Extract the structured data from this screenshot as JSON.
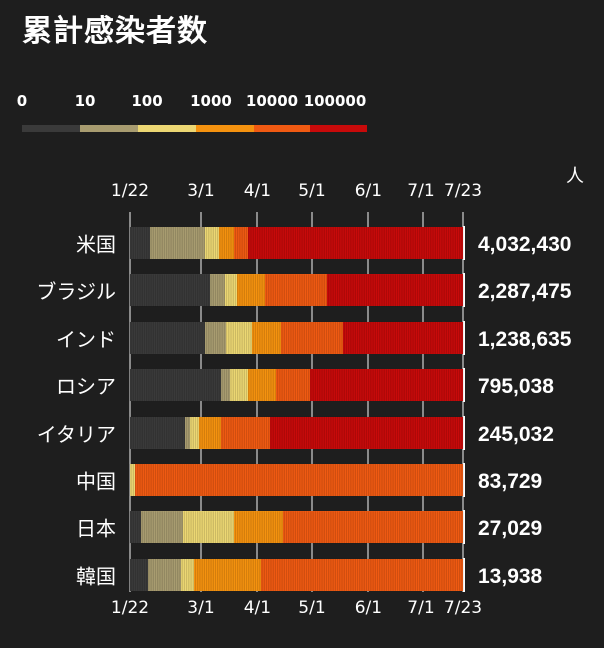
{
  "title": "累計感染者数",
  "unit_label": "人",
  "legend": {
    "thresholds": [
      "0",
      "10",
      "100",
      "1000",
      "10000",
      "100000"
    ],
    "colors": [
      "#3a3a3a",
      "#a89c70",
      "#ecd773",
      "#f5920f",
      "#f05a12",
      "#c80a0a"
    ]
  },
  "x_axis": {
    "ticks": [
      "1/22",
      "3/1",
      "4/1",
      "5/1",
      "6/1",
      "7/1",
      "7/23"
    ]
  },
  "chart_data": {
    "type": "bar",
    "title": "累計感染者数",
    "subtitle": "",
    "xlabel": "",
    "ylabel": "",
    "x_range": [
      "1/22",
      "7/23"
    ],
    "color_scale_thresholds": [
      0,
      10,
      100,
      1000,
      10000,
      100000
    ],
    "categories": [
      "米国",
      "ブラジル",
      "インド",
      "ロシア",
      "イタリア",
      "中国",
      "日本",
      "韓国"
    ],
    "totals": [
      "4,032,430",
      "2,287,475",
      "1,238,635",
      "795,038",
      "245,032",
      "83,729",
      "27,029",
      "13,938"
    ],
    "threshold_crossing_dates": [
      {
        "country": "米国",
        "10": "2/2",
        "100": "3/3",
        "1000": "3/11",
        "10000": "3/19",
        "100000": "3/27"
      },
      {
        "country": "ブラジル",
        "10": "3/6",
        "100": "3/14",
        "1000": "3/21",
        "10000": "4/5",
        "100000": "5/9"
      },
      {
        "country": "インド",
        "10": "3/3",
        "100": "3/15",
        "1000": "3/29",
        "10000": "4/14",
        "100000": "5/18"
      },
      {
        "country": "ロシア",
        "10": "3/12",
        "100": "3/17",
        "1000": "3/27",
        "10000": "4/11",
        "100000": "4/30"
      },
      {
        "country": "イタリア",
        "10": "2/21",
        "100": "2/24",
        "1000": "2/29",
        "10000": "3/12",
        "100000": "4/8"
      },
      {
        "country": "中国",
        "10": "1/22",
        "100": "1/22",
        "1000": "1/25",
        "10000": "1/25",
        "100000": ""
      },
      {
        "country": "日本",
        "10": "1/28",
        "100": "2/20",
        "1000": "3/19",
        "10000": "4/15",
        "100000": ""
      },
      {
        "country": "韓国",
        "10": "2/1",
        "100": "2/19",
        "1000": "2/26",
        "10000": "4/3",
        "100000": ""
      }
    ]
  }
}
